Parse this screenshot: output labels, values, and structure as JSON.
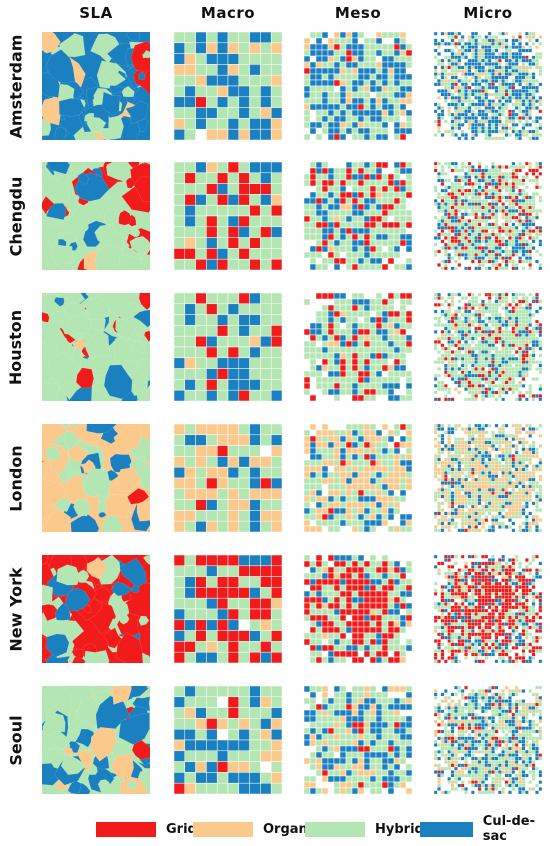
{
  "columns": [
    "SLA",
    "Macro",
    "Meso",
    "Micro"
  ],
  "rows": [
    "Amsterdam",
    "Chengdu",
    "Houston",
    "London",
    "New York",
    "Seoul"
  ],
  "legend": [
    {
      "key": "grid",
      "label": "Grid",
      "color": "#f21b1b"
    },
    {
      "key": "organic",
      "label": "Organic",
      "color": "#fcc98c"
    },
    {
      "key": "hybrid",
      "label": "Hybrid",
      "color": "#b3e6b3"
    },
    {
      "key": "culdesac",
      "label": "Cul-de-sac",
      "color": "#1a80c0"
    }
  ],
  "panels": {
    "Amsterdam": {
      "dominant": "culdesac",
      "mix": [
        0.02,
        0.1,
        0.38,
        0.5
      ]
    },
    "Chengdu": {
      "dominant": "hybrid",
      "mix": [
        0.22,
        0.02,
        0.55,
        0.21
      ]
    },
    "Houston": {
      "dominant": "hybrid",
      "mix": [
        0.14,
        0.04,
        0.62,
        0.2
      ]
    },
    "London": {
      "dominant": "organic",
      "mix": [
        0.02,
        0.4,
        0.36,
        0.22
      ]
    },
    "New York": {
      "dominant": "grid",
      "mix": [
        0.4,
        0.04,
        0.36,
        0.2
      ]
    },
    "Seoul": {
      "dominant": "hybrid",
      "mix": [
        0.06,
        0.16,
        0.48,
        0.3
      ]
    }
  }
}
